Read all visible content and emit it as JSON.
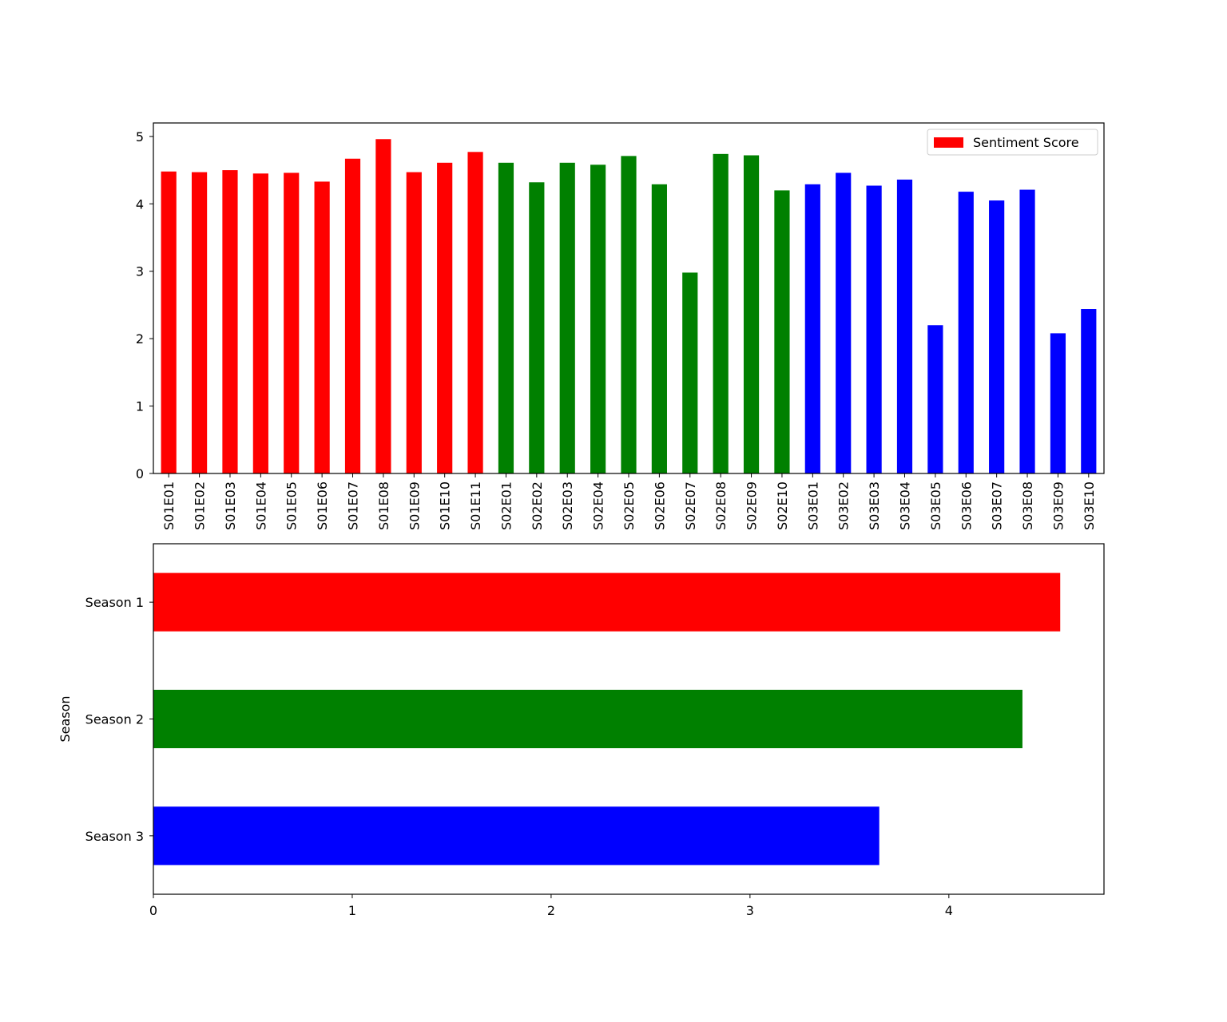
{
  "chart_data": [
    {
      "type": "bar",
      "xlabel": "",
      "ylabel": "",
      "ylim": [
        0,
        5.2
      ],
      "yticks": [
        0,
        1,
        2,
        3,
        4,
        5
      ],
      "grid": false,
      "legend": {
        "placement": "top-right",
        "label": "Sentiment Score",
        "color": "#ff0000"
      },
      "categories": [
        "S01E01",
        "S01E02",
        "S01E03",
        "S01E04",
        "S01E05",
        "S01E06",
        "S01E07",
        "S01E08",
        "S01E09",
        "S01E10",
        "S01E11",
        "S02E01",
        "S02E02",
        "S02E03",
        "S02E04",
        "S02E05",
        "S02E06",
        "S02E07",
        "S02E08",
        "S02E09",
        "S02E10",
        "S03E01",
        "S03E02",
        "S03E03",
        "S03E04",
        "S03E05",
        "S03E06",
        "S03E07",
        "S03E08",
        "S03E09",
        "S03E10"
      ],
      "values": [
        4.48,
        4.47,
        4.5,
        4.45,
        4.46,
        4.33,
        4.67,
        4.96,
        4.47,
        4.61,
        4.77,
        4.61,
        4.32,
        4.61,
        4.58,
        4.71,
        4.29,
        2.98,
        4.74,
        4.72,
        4.2,
        4.29,
        4.46,
        4.27,
        4.36,
        2.2,
        4.18,
        4.05,
        4.21,
        2.08,
        2.44
      ],
      "colors": [
        "#ff0000",
        "#ff0000",
        "#ff0000",
        "#ff0000",
        "#ff0000",
        "#ff0000",
        "#ff0000",
        "#ff0000",
        "#ff0000",
        "#ff0000",
        "#ff0000",
        "#008000",
        "#008000",
        "#008000",
        "#008000",
        "#008000",
        "#008000",
        "#008000",
        "#008000",
        "#008000",
        "#008000",
        "#0000ff",
        "#0000ff",
        "#0000ff",
        "#0000ff",
        "#0000ff",
        "#0000ff",
        "#0000ff",
        "#0000ff",
        "#0000ff",
        "#0000ff"
      ]
    },
    {
      "type": "bar",
      "orientation": "horizontal",
      "xlabel": "",
      "ylabel": "Season",
      "xlim": [
        0,
        4.78
      ],
      "xticks": [
        0,
        1,
        2,
        3,
        4
      ],
      "grid": false,
      "categories": [
        "Season 1",
        "Season 2",
        "Season 3"
      ],
      "values": [
        4.56,
        4.37,
        3.65
      ],
      "colors": [
        "#ff0000",
        "#008000",
        "#0000ff"
      ]
    }
  ]
}
